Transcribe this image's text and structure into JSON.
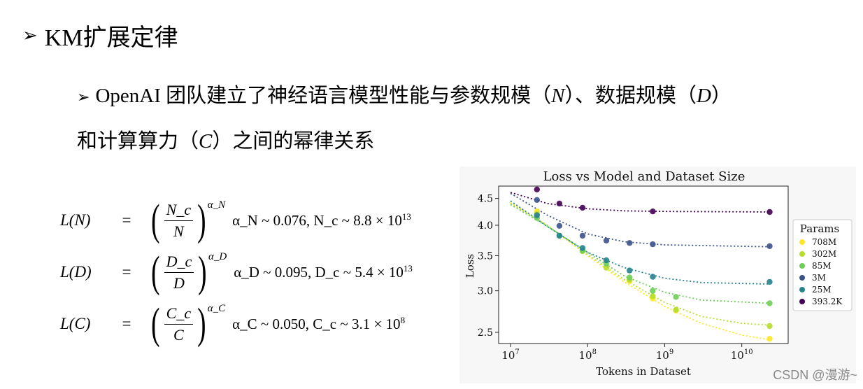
{
  "heading": {
    "arrow": "➢",
    "text": "KM扩展定律"
  },
  "subheading": {
    "arrow": "➢",
    "line1": "OpenAI 团队建立了神经语言模型性能与参数规模（",
    "N": "N",
    "mid": "）、数据规模（",
    "D": "D",
    "end1": "）",
    "line2a": "和计算算力（",
    "C": "C",
    "line2b": "）之间的幂律关系"
  },
  "formulas": [
    {
      "lhs": "L(N)",
      "eq": "=",
      "num": "N_c",
      "den": "N",
      "exp": "α_N",
      "rhs_text": "α_N ~ 0.076, N_c ~ 8.8 × 10",
      "rhs_exp": "13"
    },
    {
      "lhs": "L(D)",
      "eq": "=",
      "num": "D_c",
      "den": "D",
      "exp": "α_D",
      "rhs_text": "α_D ~ 0.095, D_c ~ 5.4 × 10",
      "rhs_exp": "13"
    },
    {
      "lhs": "L(C)",
      "eq": "=",
      "num": "C_c",
      "den": "C",
      "exp": "α_C",
      "rhs_text": "α_C ~ 0.050, C_c ~ 3.1 × 10",
      "rhs_exp": "8"
    }
  ],
  "watermark": "CSDN @漫游~",
  "chart_data": {
    "type": "scatter",
    "title": "Loss vs Model and Dataset Size",
    "xlabel": "Tokens in Dataset",
    "ylabel": "Loss",
    "xscale": "log",
    "yscale": "log",
    "xlim": [
      7000000,
      40000000000
    ],
    "ylim": [
      2.38,
      4.75
    ],
    "x_ticks": [
      {
        "value": 10000000,
        "label": "10^7"
      },
      {
        "value": 100000000,
        "label": "10^8"
      },
      {
        "value": 1000000000,
        "label": "10^9"
      },
      {
        "value": 10000000000,
        "label": "10^10"
      }
    ],
    "y_ticks": [
      2.5,
      3.0,
      3.5,
      4.0,
      4.5
    ],
    "legend_title": "Params",
    "legend_position": "right",
    "series": [
      {
        "name": "708M",
        "color": "#fde725",
        "x": [
          22000000,
          86000000,
          350000000,
          700000000,
          1400000000,
          23000000000
        ],
        "y": [
          4.25,
          3.58,
          3.13,
          2.9,
          2.75,
          2.43
        ],
        "fit": [
          [
            10000000,
            4.42
          ],
          [
            30000000,
            4.0
          ],
          [
            100000000,
            3.5
          ],
          [
            300000000,
            3.12
          ],
          [
            1000000000,
            2.8
          ],
          [
            3000000000,
            2.6
          ],
          [
            10000000000,
            2.47
          ],
          [
            23000000000,
            2.42
          ]
        ]
      },
      {
        "name": "302M",
        "color": "#b5de2b",
        "x": [
          22000000,
          86000000,
          175000000,
          350000000,
          700000000,
          1400000000,
          23000000000
        ],
        "y": [
          4.2,
          3.57,
          3.32,
          3.15,
          2.93,
          2.76,
          2.57
        ],
        "fit": [
          [
            10000000,
            4.4
          ],
          [
            30000000,
            4.0
          ],
          [
            100000000,
            3.52
          ],
          [
            300000000,
            3.15
          ],
          [
            1000000000,
            2.85
          ],
          [
            3000000000,
            2.68
          ],
          [
            10000000000,
            2.6
          ],
          [
            23000000000,
            2.58
          ]
        ]
      },
      {
        "name": "85M",
        "color": "#6ece58",
        "x": [
          22000000,
          43000000,
          86000000,
          175000000,
          350000000,
          700000000,
          1400000000,
          23000000000
        ],
        "y": [
          4.13,
          3.82,
          3.58,
          3.38,
          3.18,
          3.0,
          2.92,
          2.84
        ],
        "fit": [
          [
            10000000,
            4.38
          ],
          [
            30000000,
            3.98
          ],
          [
            100000000,
            3.55
          ],
          [
            300000000,
            3.2
          ],
          [
            1000000000,
            2.98
          ],
          [
            3000000000,
            2.88
          ],
          [
            23000000000,
            2.84
          ]
        ]
      },
      {
        "name": "3M",
        "color": "#3b528b",
        "x": [
          22000000,
          43000000,
          86000000,
          175000000,
          350000000,
          700000000,
          23000000000
        ],
        "y": [
          4.47,
          3.99,
          3.82,
          3.74,
          3.7,
          3.68,
          3.65
        ],
        "fit": [
          [
            10000000,
            4.6
          ],
          [
            30000000,
            4.18
          ],
          [
            100000000,
            3.85
          ],
          [
            300000000,
            3.72
          ],
          [
            1000000000,
            3.67
          ],
          [
            23000000000,
            3.64
          ]
        ]
      },
      {
        "name": "25M",
        "color": "#26828e",
        "x": [
          22000000,
          43000000,
          86000000,
          175000000,
          350000000,
          700000000,
          23000000000
        ],
        "y": [
          4.18,
          3.82,
          3.62,
          3.43,
          3.28,
          3.19,
          3.12
        ],
        "fit": [
          [
            10000000,
            4.45
          ],
          [
            30000000,
            3.98
          ],
          [
            100000000,
            3.55
          ],
          [
            300000000,
            3.32
          ],
          [
            1000000000,
            3.17
          ],
          [
            3000000000,
            3.11
          ],
          [
            23000000000,
            3.09
          ]
        ]
      },
      {
        "name": "393.2K",
        "color": "#440154",
        "x": [
          22000000,
          43000000,
          86000000,
          700000000,
          23000000000
        ],
        "y": [
          4.68,
          4.4,
          4.32,
          4.25,
          4.24
        ],
        "fit": [
          [
            10000000,
            4.62
          ],
          [
            30000000,
            4.4
          ],
          [
            100000000,
            4.3
          ],
          [
            300000000,
            4.26
          ],
          [
            1000000000,
            4.25
          ],
          [
            23000000000,
            4.24
          ]
        ]
      }
    ]
  }
}
